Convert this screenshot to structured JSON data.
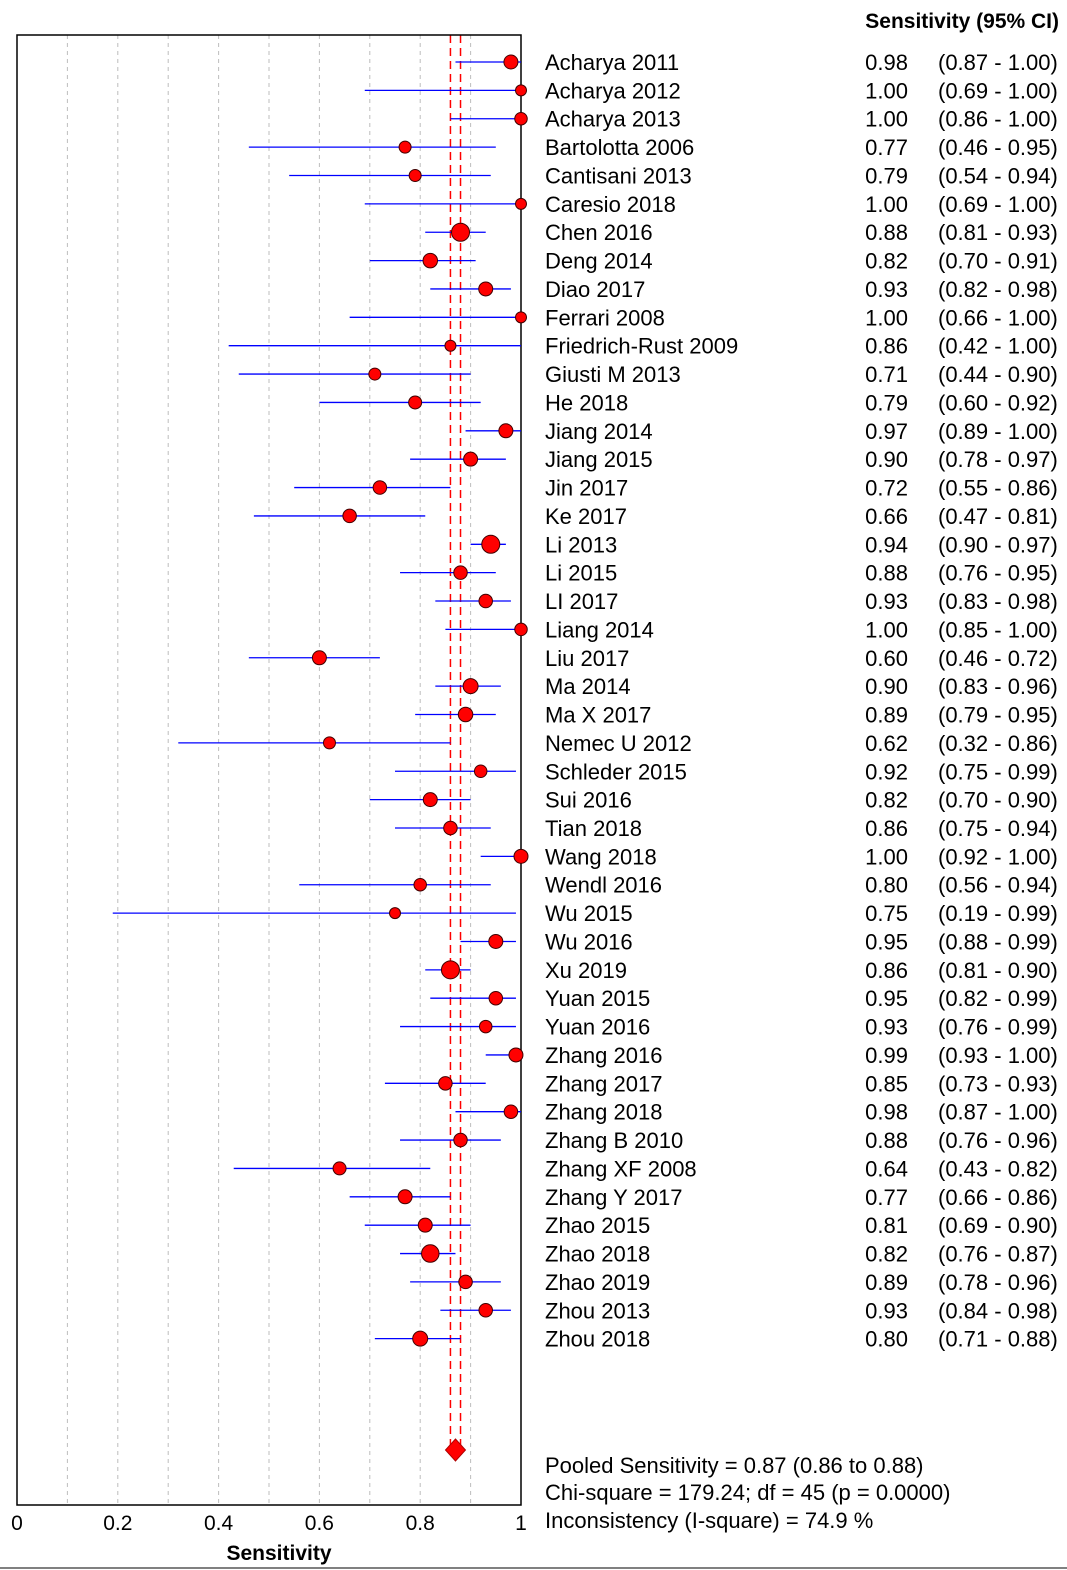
{
  "chart_data": {
    "type": "forest",
    "header": "Sensitivity (95% CI)",
    "xlabel": "Sensitivity",
    "xlim": [
      0,
      1
    ],
    "xticks": [
      "0",
      "0.2",
      "0.4",
      "0.6",
      "0.8",
      "1"
    ],
    "grid": "vertical dashed",
    "colors": {
      "ci_line": "#0000ff",
      "point": "#ff0000",
      "pooled_line": "#ff0000"
    },
    "studies": [
      {
        "name": "Acharya 2011",
        "value": "0.98",
        "ci": "(0.87 - 1.00)",
        "est": 0.98,
        "lo": 0.87,
        "hi": 1.0,
        "weight": 0.6
      },
      {
        "name": "Acharya 2012",
        "value": "1.00",
        "ci": "(0.69 - 1.00)",
        "est": 1.0,
        "lo": 0.69,
        "hi": 1.0,
        "weight": 0.3
      },
      {
        "name": "Acharya 2013",
        "value": "1.00",
        "ci": "(0.86 - 1.00)",
        "est": 1.0,
        "lo": 0.86,
        "hi": 1.0,
        "weight": 0.45
      },
      {
        "name": "Bartolotta 2006",
        "value": "0.77",
        "ci": "(0.46 - 0.95)",
        "est": 0.77,
        "lo": 0.46,
        "hi": 0.95,
        "weight": 0.4
      },
      {
        "name": "Cantisani  2013",
        "value": "0.79",
        "ci": "(0.54 - 0.94)",
        "est": 0.79,
        "lo": 0.54,
        "hi": 0.94,
        "weight": 0.4
      },
      {
        "name": "Caresio  2018",
        "value": "1.00",
        "ci": "(0.69 - 1.00)",
        "est": 1.0,
        "lo": 0.69,
        "hi": 1.0,
        "weight": 0.3
      },
      {
        "name": "Chen 2016",
        "value": "0.88",
        "ci": "(0.81 - 0.93)",
        "est": 0.88,
        "lo": 0.81,
        "hi": 0.93,
        "weight": 1.0
      },
      {
        "name": "Deng 2014",
        "value": "0.82",
        "ci": "(0.70 - 0.91)",
        "est": 0.82,
        "lo": 0.7,
        "hi": 0.91,
        "weight": 0.65
      },
      {
        "name": "Diao 2017",
        "value": "0.93",
        "ci": "(0.82 - 0.98)",
        "est": 0.93,
        "lo": 0.82,
        "hi": 0.98,
        "weight": 0.6
      },
      {
        "name": "Ferrari 2008",
        "value": "1.00",
        "ci": "(0.66 - 1.00)",
        "est": 1.0,
        "lo": 0.66,
        "hi": 1.0,
        "weight": 0.3
      },
      {
        "name": "Friedrich-Rust 2009",
        "value": "0.86",
        "ci": "(0.42 - 1.00)",
        "est": 0.86,
        "lo": 0.42,
        "hi": 1.0,
        "weight": 0.3
      },
      {
        "name": "Giusti M 2013",
        "value": "0.71",
        "ci": "(0.44 - 0.90)",
        "est": 0.71,
        "lo": 0.44,
        "hi": 0.9,
        "weight": 0.4
      },
      {
        "name": "He 2018",
        "value": "0.79",
        "ci": "(0.60 - 0.92)",
        "est": 0.79,
        "lo": 0.6,
        "hi": 0.92,
        "weight": 0.5
      },
      {
        "name": "Jiang 2014",
        "value": "0.97",
        "ci": "(0.89 - 1.00)",
        "est": 0.97,
        "lo": 0.89,
        "hi": 1.0,
        "weight": 0.6
      },
      {
        "name": "Jiang 2015",
        "value": "0.90",
        "ci": "(0.78 - 0.97)",
        "est": 0.9,
        "lo": 0.78,
        "hi": 0.97,
        "weight": 0.6
      },
      {
        "name": "Jin 2017",
        "value": "0.72",
        "ci": "(0.55 - 0.86)",
        "est": 0.72,
        "lo": 0.55,
        "hi": 0.86,
        "weight": 0.55
      },
      {
        "name": "Ke 2017",
        "value": "0.66",
        "ci": "(0.47 - 0.81)",
        "est": 0.66,
        "lo": 0.47,
        "hi": 0.81,
        "weight": 0.55
      },
      {
        "name": "Li 2013",
        "value": "0.94",
        "ci": "(0.90 - 0.97)",
        "est": 0.94,
        "lo": 0.9,
        "hi": 0.97,
        "weight": 1.0
      },
      {
        "name": "Li 2015",
        "value": "0.88",
        "ci": "(0.76 - 0.95)",
        "est": 0.88,
        "lo": 0.76,
        "hi": 0.95,
        "weight": 0.55
      },
      {
        "name": "LI 2017",
        "value": "0.93",
        "ci": "(0.83 - 0.98)",
        "est": 0.93,
        "lo": 0.83,
        "hi": 0.98,
        "weight": 0.55
      },
      {
        "name": "Liang 2014",
        "value": "1.00",
        "ci": "(0.85 - 1.00)",
        "est": 1.0,
        "lo": 0.85,
        "hi": 1.0,
        "weight": 0.45
      },
      {
        "name": "Liu 2017",
        "value": "0.60",
        "ci": "(0.46 - 0.72)",
        "est": 0.6,
        "lo": 0.46,
        "hi": 0.72,
        "weight": 0.6
      },
      {
        "name": "Ma 2014",
        "value": "0.90",
        "ci": "(0.83 - 0.96)",
        "est": 0.9,
        "lo": 0.83,
        "hi": 0.96,
        "weight": 0.7
      },
      {
        "name": "Ma X 2017",
        "value": "0.89",
        "ci": "(0.79 - 0.95)",
        "est": 0.89,
        "lo": 0.79,
        "hi": 0.95,
        "weight": 0.65
      },
      {
        "name": "Nemec U 2012",
        "value": "0.62",
        "ci": "(0.32 - 0.86)",
        "est": 0.62,
        "lo": 0.32,
        "hi": 0.86,
        "weight": 0.4
      },
      {
        "name": "Schleder 2015",
        "value": "0.92",
        "ci": "(0.75 - 0.99)",
        "est": 0.92,
        "lo": 0.75,
        "hi": 0.99,
        "weight": 0.45
      },
      {
        "name": "Sui 2016",
        "value": "0.82",
        "ci": "(0.70 - 0.90)",
        "est": 0.82,
        "lo": 0.7,
        "hi": 0.9,
        "weight": 0.6
      },
      {
        "name": "Tian 2018",
        "value": "0.86",
        "ci": "(0.75 - 0.94)",
        "est": 0.86,
        "lo": 0.75,
        "hi": 0.94,
        "weight": 0.55
      },
      {
        "name": "Wang 2018",
        "value": "1.00",
        "ci": "(0.92 - 1.00)",
        "est": 1.0,
        "lo": 0.92,
        "hi": 1.0,
        "weight": 0.6
      },
      {
        "name": "Wendl 2016",
        "value": "0.80",
        "ci": "(0.56 - 0.94)",
        "est": 0.8,
        "lo": 0.56,
        "hi": 0.94,
        "weight": 0.45
      },
      {
        "name": "Wu 2015",
        "value": "0.75",
        "ci": "(0.19 - 0.99)",
        "est": 0.75,
        "lo": 0.19,
        "hi": 0.99,
        "weight": 0.3
      },
      {
        "name": "Wu 2016",
        "value": "0.95",
        "ci": "(0.88 - 0.99)",
        "est": 0.95,
        "lo": 0.88,
        "hi": 0.99,
        "weight": 0.6
      },
      {
        "name": "Xu 2019",
        "value": "0.86",
        "ci": "(0.81 - 0.90)",
        "est": 0.86,
        "lo": 0.81,
        "hi": 0.9,
        "weight": 1.0
      },
      {
        "name": "Yuan 2015",
        "value": "0.95",
        "ci": "(0.82 - 0.99)",
        "est": 0.95,
        "lo": 0.82,
        "hi": 0.99,
        "weight": 0.55
      },
      {
        "name": "Yuan 2016",
        "value": "0.93",
        "ci": "(0.76 - 0.99)",
        "est": 0.93,
        "lo": 0.76,
        "hi": 0.99,
        "weight": 0.45
      },
      {
        "name": "Zhang 2016",
        "value": "0.99",
        "ci": "(0.93 - 1.00)",
        "est": 0.99,
        "lo": 0.93,
        "hi": 1.0,
        "weight": 0.6
      },
      {
        "name": "Zhang 2017",
        "value": "0.85",
        "ci": "(0.73 - 0.93)",
        "est": 0.85,
        "lo": 0.73,
        "hi": 0.93,
        "weight": 0.55
      },
      {
        "name": "Zhang 2018",
        "value": "0.98",
        "ci": "(0.87 - 1.00)",
        "est": 0.98,
        "lo": 0.87,
        "hi": 1.0,
        "weight": 0.55
      },
      {
        "name": "Zhang B 2010",
        "value": "0.88",
        "ci": "(0.76 - 0.96)",
        "est": 0.88,
        "lo": 0.76,
        "hi": 0.96,
        "weight": 0.55
      },
      {
        "name": "Zhang XF 2008",
        "value": "0.64",
        "ci": "(0.43 - 0.82)",
        "est": 0.64,
        "lo": 0.43,
        "hi": 0.82,
        "weight": 0.5
      },
      {
        "name": "Zhang Y 2017",
        "value": "0.77",
        "ci": "(0.66 - 0.86)",
        "est": 0.77,
        "lo": 0.66,
        "hi": 0.86,
        "weight": 0.6
      },
      {
        "name": "Zhao 2015",
        "value": "0.81",
        "ci": "(0.69 - 0.90)",
        "est": 0.81,
        "lo": 0.69,
        "hi": 0.9,
        "weight": 0.6
      },
      {
        "name": "Zhao 2018",
        "value": "0.82",
        "ci": "(0.76 - 0.87)",
        "est": 0.82,
        "lo": 0.76,
        "hi": 0.87,
        "weight": 0.95
      },
      {
        "name": "Zhao 2019",
        "value": "0.89",
        "ci": "(0.78 - 0.96)",
        "est": 0.89,
        "lo": 0.78,
        "hi": 0.96,
        "weight": 0.55
      },
      {
        "name": "Zhou 2013",
        "value": "0.93",
        "ci": "(0.84 - 0.98)",
        "est": 0.93,
        "lo": 0.84,
        "hi": 0.98,
        "weight": 0.55
      },
      {
        "name": "Zhou 2018",
        "value": "0.80",
        "ci": "(0.71 - 0.88)",
        "est": 0.8,
        "lo": 0.71,
        "hi": 0.88,
        "weight": 0.7
      }
    ],
    "pooled": {
      "est": 0.87,
      "lo": 0.86,
      "hi": 0.88
    },
    "summary": [
      "Pooled Sensitivity = 0.87 (0.86 to 0.88)",
      "Chi-square = 179.24; df =  45 (p = 0.0000)",
      "Inconsistency (I-square) = 74.9 %"
    ]
  }
}
